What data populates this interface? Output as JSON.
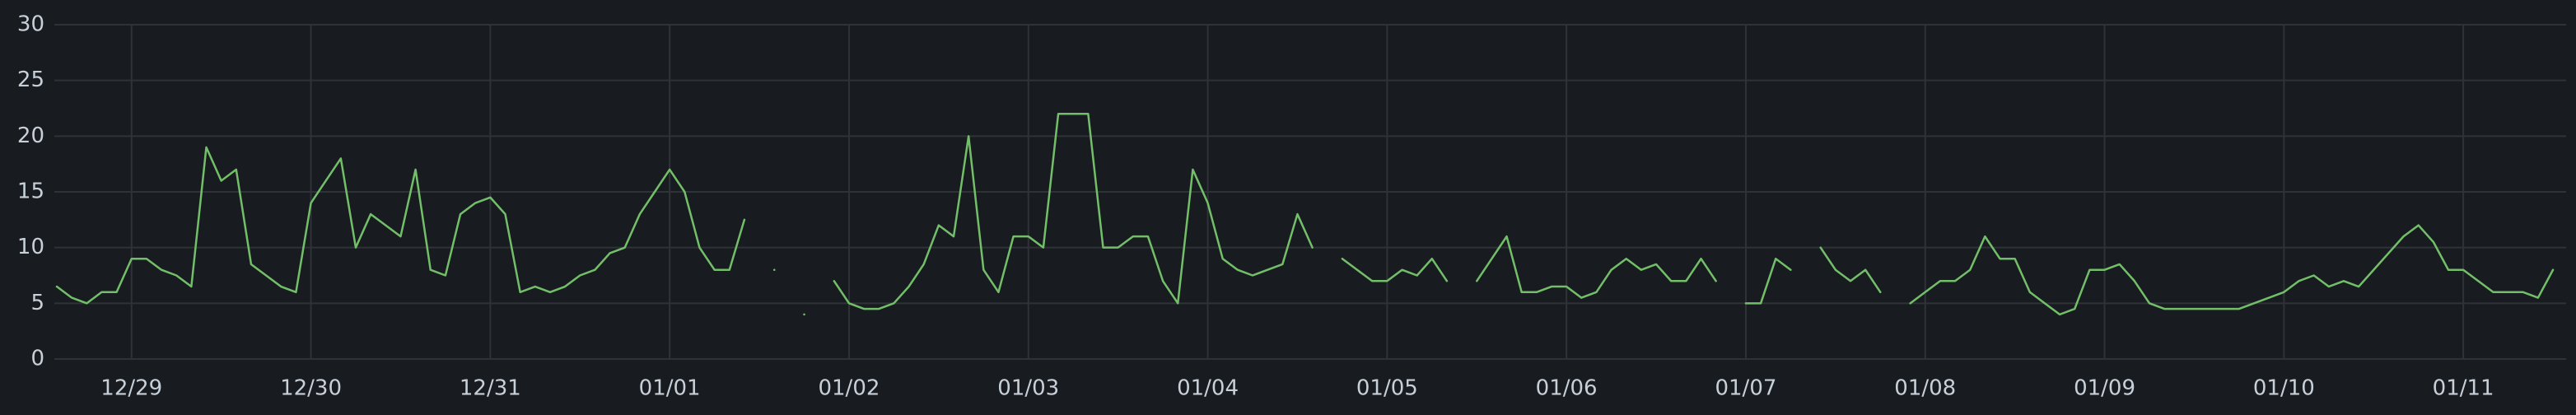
{
  "chart_data": {
    "type": "line",
    "x": [
      "12/28 14:00",
      "12/28 16:00",
      "12/28 18:00",
      "12/28 20:00",
      "12/28 22:00",
      "12/29 00:00",
      "12/29 02:00",
      "12/29 04:00",
      "12/29 06:00",
      "12/29 08:00",
      "12/29 10:00",
      "12/29 12:00",
      "12/29 14:00",
      "12/29 16:00",
      "12/29 18:00",
      "12/29 20:00",
      "12/29 22:00",
      "12/30 00:00",
      "12/30 02:00",
      "12/30 04:00",
      "12/30 06:00",
      "12/30 08:00",
      "12/30 10:00",
      "12/30 12:00",
      "12/30 14:00",
      "12/30 16:00",
      "12/30 18:00",
      "12/30 20:00",
      "12/30 22:00",
      "12/31 00:00",
      "12/31 02:00",
      "12/31 04:00",
      "12/31 06:00",
      "12/31 08:00",
      "12/31 10:00",
      "12/31 12:00",
      "12/31 14:00",
      "12/31 16:00",
      "12/31 18:00",
      "12/31 20:00",
      "12/31 22:00",
      "01/01 00:00",
      "01/01 02:00",
      "01/01 04:00",
      "01/01 06:00",
      "01/01 08:00",
      "01/01 10:00",
      "01/01 12:00",
      "01/01 14:00",
      "01/01 16:00",
      "01/01 18:00",
      "01/01 20:00",
      "01/01 22:00",
      "01/02 00:00",
      "01/02 02:00",
      "01/02 04:00",
      "01/02 06:00",
      "01/02 08:00",
      "01/02 10:00",
      "01/02 12:00",
      "01/02 14:00",
      "01/02 16:00",
      "01/02 18:00",
      "01/02 20:00",
      "01/02 22:00",
      "01/03 00:00",
      "01/03 02:00",
      "01/03 04:00",
      "01/03 06:00",
      "01/03 08:00",
      "01/03 10:00",
      "01/03 12:00",
      "01/03 14:00",
      "01/03 16:00",
      "01/03 18:00",
      "01/03 20:00",
      "01/03 22:00",
      "01/04 00:00",
      "01/04 02:00",
      "01/04 04:00",
      "01/04 06:00",
      "01/04 08:00",
      "01/04 10:00",
      "01/04 12:00",
      "01/04 14:00",
      "01/04 16:00",
      "01/04 18:00",
      "01/04 20:00",
      "01/04 22:00",
      "01/05 00:00",
      "01/05 02:00",
      "01/05 04:00",
      "01/05 06:00",
      "01/05 08:00",
      "01/05 10:00",
      "01/05 12:00",
      "01/05 14:00",
      "01/05 16:00",
      "01/05 18:00",
      "01/05 20:00",
      "01/05 22:00",
      "01/06 00:00",
      "01/06 02:00",
      "01/06 04:00",
      "01/06 06:00",
      "01/06 08:00",
      "01/06 10:00",
      "01/06 12:00",
      "01/06 14:00",
      "01/06 16:00",
      "01/06 18:00",
      "01/06 20:00",
      "01/06 22:00",
      "01/07 00:00",
      "01/07 02:00",
      "01/07 04:00",
      "01/07 06:00",
      "01/07 08:00",
      "01/07 10:00",
      "01/07 12:00",
      "01/07 14:00",
      "01/07 16:00",
      "01/07 18:00",
      "01/07 20:00",
      "01/07 22:00",
      "01/08 00:00",
      "01/08 02:00",
      "01/08 04:00",
      "01/08 06:00",
      "01/08 08:00",
      "01/08 10:00",
      "01/08 12:00",
      "01/08 14:00",
      "01/08 16:00",
      "01/08 18:00",
      "01/08 20:00",
      "01/08 22:00",
      "01/09 00:00",
      "01/09 02:00",
      "01/09 04:00",
      "01/09 06:00",
      "01/09 08:00",
      "01/09 10:00",
      "01/09 12:00",
      "01/09 14:00",
      "01/09 16:00",
      "01/09 18:00",
      "01/09 20:00",
      "01/09 22:00",
      "01/10 00:00",
      "01/10 02:00",
      "01/10 04:00",
      "01/10 06:00",
      "01/10 08:00",
      "01/10 10:00",
      "01/10 12:00",
      "01/10 14:00",
      "01/10 16:00",
      "01/10 18:00",
      "01/10 20:00",
      "01/10 22:00",
      "01/11 00:00",
      "01/11 02:00",
      "01/11 04:00",
      "01/11 06:00",
      "01/11 08:00",
      "01/11 10:00",
      "01/11 12:00"
    ],
    "series": [
      {
        "color": "#73bf69",
        "values": [
          6.5,
          5.5,
          5,
          6,
          6,
          9,
          9,
          8,
          7.5,
          6.5,
          19,
          16,
          17,
          8.5,
          7.5,
          6.5,
          6,
          14,
          16,
          18,
          10,
          13,
          12,
          11,
          17,
          8,
          7.5,
          13,
          14,
          14.5,
          13,
          6,
          6.5,
          6,
          6.5,
          7.5,
          8,
          9.5,
          10,
          13,
          15,
          17,
          15,
          10,
          8,
          8,
          12.5,
          null,
          8,
          null,
          4,
          null,
          7,
          5,
          4.5,
          4.5,
          5,
          6.5,
          8.5,
          12,
          11,
          20,
          8,
          6,
          11,
          11,
          10,
          22,
          22,
          22,
          10,
          10,
          11,
          11,
          7,
          5,
          17,
          14,
          9,
          8,
          7.5,
          8,
          8.5,
          13,
          10,
          null,
          9,
          8,
          7,
          7,
          8,
          7.5,
          9,
          7,
          null,
          7,
          9,
          11,
          6,
          6,
          6.5,
          6.5,
          5.5,
          6,
          8,
          9,
          8,
          8.5,
          7,
          7,
          9,
          7,
          null,
          5,
          5,
          9,
          8,
          null,
          10,
          8,
          7,
          8,
          6,
          null,
          5,
          6,
          7,
          7,
          8,
          11,
          9,
          9,
          6,
          5,
          4,
          4.5,
          8,
          8,
          8.5,
          7,
          5,
          4.5,
          4.5,
          4.5,
          4.5,
          4.5,
          4.5,
          5,
          5.5,
          6,
          7,
          7.5,
          6.5,
          7,
          6.5,
          8,
          9.5,
          11,
          12,
          10.5,
          8,
          8,
          7,
          6,
          6,
          6,
          5.5,
          8
        ]
      }
    ],
    "ylim": [
      0,
      30
    ],
    "yticks": [
      0,
      5,
      10,
      15,
      20,
      25,
      30
    ],
    "xticks": [
      {
        "value": "12/29 00:00",
        "label": "12/29"
      },
      {
        "value": "12/30 00:00",
        "label": "12/30"
      },
      {
        "value": "12/31 00:00",
        "label": "12/31"
      },
      {
        "value": "01/01 00:00",
        "label": "01/01"
      },
      {
        "value": "01/02 00:00",
        "label": "01/02"
      },
      {
        "value": "01/03 00:00",
        "label": "01/03"
      },
      {
        "value": "01/04 00:00",
        "label": "01/04"
      },
      {
        "value": "01/05 00:00",
        "label": "01/05"
      },
      {
        "value": "01/06 00:00",
        "label": "01/06"
      },
      {
        "value": "01/07 00:00",
        "label": "01/07"
      },
      {
        "value": "01/08 00:00",
        "label": "01/08"
      },
      {
        "value": "01/09 00:00",
        "label": "01/09"
      },
      {
        "value": "01/10 00:00",
        "label": "01/10"
      },
      {
        "value": "01/11 00:00",
        "label": "01/11"
      }
    ],
    "grid": true
  }
}
